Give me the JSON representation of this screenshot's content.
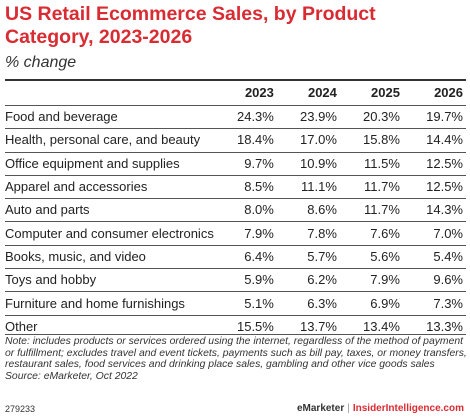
{
  "chart_data": {
    "type": "table",
    "title": "US Retail Ecommerce Sales, by Product Category, 2023-2026",
    "subtitle": "% change",
    "columns": [
      "2023",
      "2024",
      "2025",
      "2026"
    ],
    "rows": [
      {
        "category": "Food and beverage",
        "values": [
          "24.3%",
          "23.9%",
          "20.3%",
          "19.7%"
        ]
      },
      {
        "category": "Health, personal care, and beauty",
        "values": [
          "18.4%",
          "17.0%",
          "15.8%",
          "14.4%"
        ]
      },
      {
        "category": "Office equipment and supplies",
        "values": [
          "9.7%",
          "10.9%",
          "11.5%",
          "12.5%"
        ]
      },
      {
        "category": "Apparel and accessories",
        "values": [
          "8.5%",
          "11.1%",
          "11.7%",
          "12.5%"
        ]
      },
      {
        "category": "Auto and parts",
        "values": [
          "8.0%",
          "8.6%",
          "11.7%",
          "14.3%"
        ]
      },
      {
        "category": "Computer and consumer electronics",
        "values": [
          "7.9%",
          "7.8%",
          "7.6%",
          "7.0%"
        ]
      },
      {
        "category": "Books, music, and video",
        "values": [
          "6.4%",
          "5.7%",
          "5.6%",
          "5.4%"
        ]
      },
      {
        "category": "Toys and hobby",
        "values": [
          "5.9%",
          "6.2%",
          "7.9%",
          "9.6%"
        ]
      },
      {
        "category": "Furniture and home furnishings",
        "values": [
          "5.1%",
          "6.3%",
          "6.9%",
          "7.3%"
        ]
      },
      {
        "category": "Other",
        "values": [
          "15.5%",
          "13.7%",
          "13.4%",
          "13.3%"
        ]
      }
    ],
    "note": "Note: includes products or services ordered using the internet, regardless of the method of payment or fulfillment; excludes travel and event tickets, payments such as bill pay, taxes, or money transfers, restaurant sales, food services and drinking place sales, gambling and other vice goods sales",
    "source": "Source: eMarketer, Oct 2022"
  },
  "footer": {
    "chart_id": "279233",
    "brand": "eMarketer",
    "separator": "|",
    "site": "InsiderIntelligence.com"
  },
  "colors": {
    "title": "#d92b32",
    "text": "#222222",
    "rule": "#555555"
  }
}
